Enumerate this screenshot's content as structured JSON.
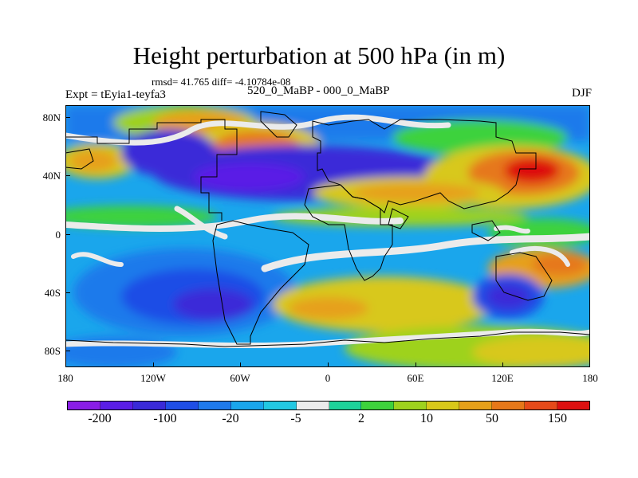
{
  "title": "Height perturbation at 500 hPa (in m)",
  "stats_line": "rmsd= 41.765 diff= -4.10784e-08",
  "experiment": "Expt = tEyia1-teyfa3",
  "period": "520_0_MaBP - 000_0_MaBP",
  "season": "DJF",
  "map": {
    "projection": "cylindrical equidistant",
    "lat_range": [
      -90,
      90
    ],
    "lon_range": [
      -180,
      180
    ],
    "field": "500 hPa geopotential height perturbation",
    "coastlines": "grid-cell land outline (black)"
  },
  "axes": {
    "lat_ticks": [
      "80N",
      "40N",
      "0",
      "40S",
      "80S"
    ],
    "lon_ticks": [
      "180",
      "120W",
      "60W",
      "0",
      "60E",
      "120E",
      "180"
    ]
  },
  "colorbar": {
    "colors": [
      "#8a1ee6",
      "#5a1ee6",
      "#3a2ad8",
      "#1f4ee6",
      "#1f7aeb",
      "#1aa6ec",
      "#22c8e2",
      "#ebebeb",
      "#1ed29a",
      "#3ed23c",
      "#9ed21e",
      "#d8c81a",
      "#e6a01a",
      "#e6781a",
      "#e64a1a",
      "#dd1010"
    ],
    "labels": [
      "-200",
      "-100",
      "-20",
      "-5",
      "2",
      "10",
      "50",
      "150"
    ]
  }
}
